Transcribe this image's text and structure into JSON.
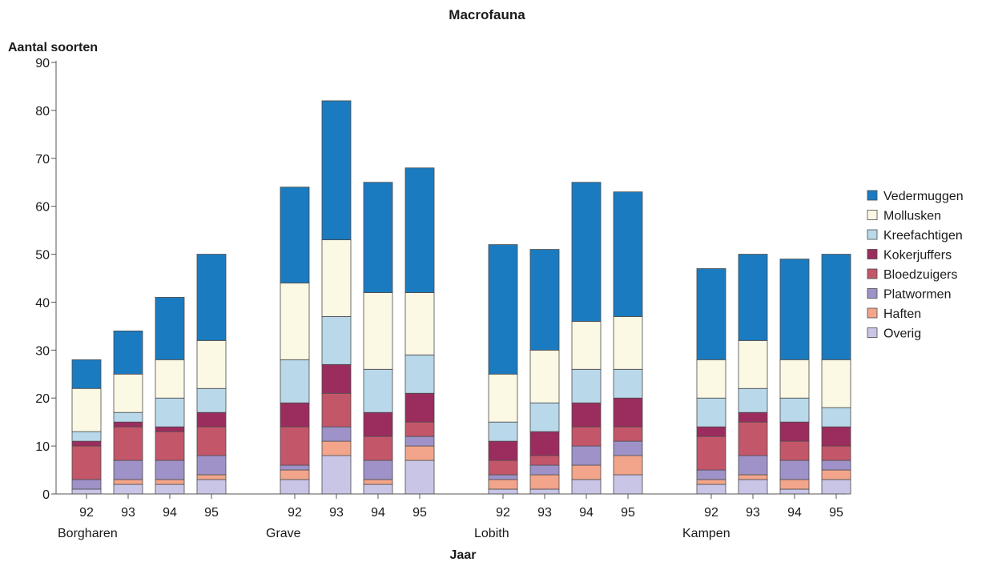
{
  "chart_data": {
    "type": "bar",
    "stacked": true,
    "title": "Macrofauna",
    "ylabel": "Aantal soorten",
    "xlabel": "Jaar",
    "ylim": [
      0,
      90
    ],
    "yticks": [
      0,
      10,
      20,
      30,
      40,
      50,
      60,
      70,
      80,
      90
    ],
    "grid": false,
    "legend_position": "right",
    "groups": [
      {
        "name": "Borgharen",
        "years": [
          "92",
          "93",
          "94",
          "95"
        ]
      },
      {
        "name": "Grave",
        "years": [
          "92",
          "93",
          "94",
          "95"
        ]
      },
      {
        "name": "Lobith",
        "years": [
          "92",
          "93",
          "94",
          "95"
        ]
      },
      {
        "name": "Kampen",
        "years": [
          "92",
          "93",
          "94",
          "95"
        ]
      }
    ],
    "series": [
      {
        "name": "Overig",
        "color": "#c9c5e6",
        "values": [
          1,
          2,
          2,
          3,
          3,
          8,
          2,
          7,
          1,
          1,
          3,
          4,
          2,
          3,
          1,
          3
        ]
      },
      {
        "name": "Haften",
        "color": "#f2a58a",
        "values": [
          0,
          1,
          1,
          1,
          2,
          3,
          1,
          3,
          2,
          3,
          3,
          4,
          1,
          1,
          2,
          2
        ]
      },
      {
        "name": "Platwormen",
        "color": "#9e92c8",
        "values": [
          2,
          4,
          4,
          4,
          1,
          3,
          4,
          2,
          1,
          2,
          4,
          3,
          2,
          4,
          4,
          2
        ]
      },
      {
        "name": "Bloedzuigers",
        "color": "#c4566a",
        "values": [
          7,
          7,
          6,
          6,
          8,
          7,
          5,
          3,
          3,
          2,
          4,
          3,
          7,
          7,
          4,
          3
        ]
      },
      {
        "name": "Kokerjuffers",
        "color": "#9b2d5e",
        "values": [
          1,
          1,
          1,
          3,
          5,
          6,
          5,
          6,
          4,
          5,
          5,
          6,
          2,
          2,
          4,
          4
        ]
      },
      {
        "name": "Kreefachtigen",
        "color": "#b9d8ea",
        "values": [
          2,
          2,
          6,
          5,
          9,
          10,
          9,
          8,
          4,
          6,
          7,
          6,
          6,
          5,
          5,
          4
        ]
      },
      {
        "name": "Mollusken",
        "color": "#fbf8e4",
        "values": [
          9,
          8,
          8,
          10,
          16,
          16,
          16,
          13,
          10,
          11,
          10,
          11,
          8,
          10,
          8,
          10
        ]
      },
      {
        "name": "Vedermuggen",
        "color": "#1b7bc0",
        "values": [
          6,
          9,
          13,
          18,
          20,
          29,
          23,
          26,
          27,
          21,
          29,
          26,
          19,
          18,
          21,
          22
        ]
      }
    ],
    "legend_order": [
      "Vedermuggen",
      "Mollusken",
      "Kreefachtigen",
      "Kokerjuffers",
      "Bloedzuigers",
      "Platwormen",
      "Haften",
      "Overig"
    ]
  }
}
